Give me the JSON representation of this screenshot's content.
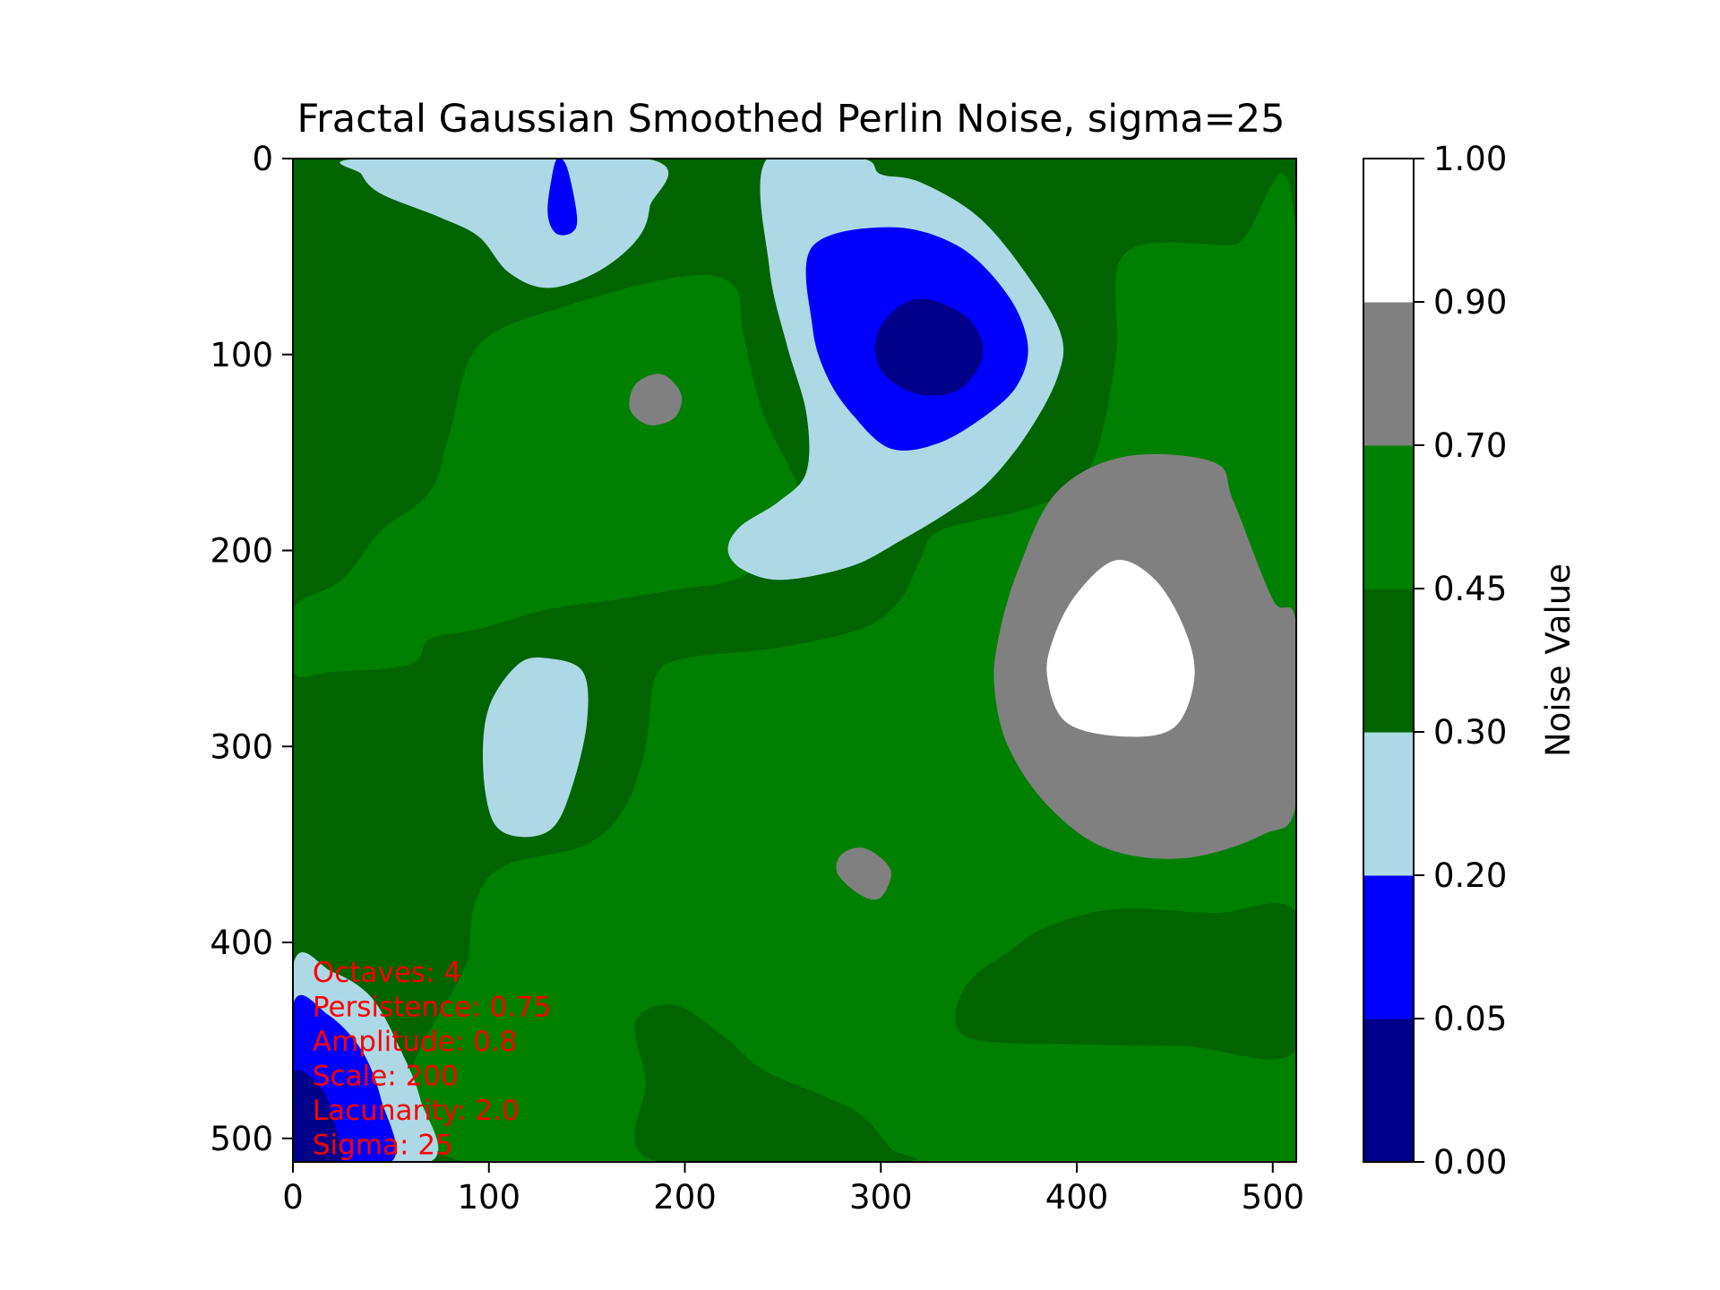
{
  "chart_data": {
    "type": "heatmap",
    "title": "Fractal Gaussian Smoothed Perlin Noise, sigma=25",
    "xlabel": "",
    "ylabel": "",
    "x_ticks": [
      0,
      100,
      200,
      300,
      400,
      500
    ],
    "y_ticks": [
      0,
      100,
      200,
      300,
      400,
      500
    ],
    "xlim": [
      0,
      512
    ],
    "ylim": [
      512,
      0
    ],
    "grid": false,
    "colorbar": {
      "label": "Noise Value",
      "boundaries": [
        0.0,
        0.05,
        0.2,
        0.3,
        0.45,
        0.7,
        0.9,
        1.0
      ],
      "tick_labels": [
        "0.00",
        "0.05",
        "0.20",
        "0.30",
        "0.45",
        "0.70",
        "0.90",
        "1.00"
      ],
      "colors": [
        "#00008b",
        "#0000ff",
        "#add8e6",
        "#006400",
        "#008000",
        "#808080",
        "#ffffff"
      ]
    },
    "annotations": [
      "Octaves: 4",
      "Persistence: 0.75",
      "Amplitude: 0.8",
      "Scale: 200",
      "Lacunarity: 2.0",
      "Sigma: 25"
    ],
    "background_color": "#006400",
    "regions": [
      {
        "level": 4,
        "points": [
          [
            0,
            230
          ],
          [
            25,
            215
          ],
          [
            45,
            190
          ],
          [
            70,
            170
          ],
          [
            80,
            140
          ],
          [
            95,
            95
          ],
          [
            140,
            75
          ],
          [
            200,
            60
          ],
          [
            225,
            65
          ],
          [
            230,
            90
          ],
          [
            240,
            130
          ],
          [
            260,
            175
          ],
          [
            250,
            200
          ],
          [
            225,
            215
          ],
          [
            195,
            220
          ],
          [
            165,
            225
          ],
          [
            130,
            230
          ],
          [
            95,
            240
          ],
          [
            70,
            245
          ],
          [
            60,
            258
          ],
          [
            20,
            262
          ],
          [
            0,
            262
          ]
        ]
      },
      {
        "level": 4,
        "points": [
          [
            512,
            42
          ],
          [
            480,
            44
          ],
          [
            425,
            48
          ],
          [
            420,
            100
          ],
          [
            410,
            150
          ],
          [
            395,
            170
          ],
          [
            370,
            180
          ],
          [
            330,
            190
          ],
          [
            320,
            205
          ],
          [
            310,
            225
          ],
          [
            290,
            240
          ],
          [
            245,
            250
          ],
          [
            200,
            255
          ],
          [
            185,
            265
          ],
          [
            180,
            300
          ],
          [
            170,
            330
          ],
          [
            150,
            350
          ],
          [
            110,
            360
          ],
          [
            95,
            375
          ],
          [
            90,
            405
          ],
          [
            88,
            512
          ],
          [
            512,
            512
          ]
        ]
      },
      {
        "level": 3,
        "points": [
          [
            185,
            512
          ],
          [
            180,
            470
          ],
          [
            175,
            440
          ],
          [
            195,
            432
          ],
          [
            220,
            448
          ],
          [
            240,
            465
          ],
          [
            270,
            478
          ],
          [
            290,
            488
          ],
          [
            305,
            505
          ],
          [
            310,
            512
          ]
        ]
      },
      {
        "level": 3,
        "points": [
          [
            512,
            385
          ],
          [
            470,
            385
          ],
          [
            420,
            383
          ],
          [
            385,
            392
          ],
          [
            365,
            405
          ],
          [
            345,
            420
          ],
          [
            338,
            440
          ],
          [
            350,
            450
          ],
          [
            400,
            452
          ],
          [
            455,
            453
          ],
          [
            512,
            455
          ]
        ]
      },
      {
        "level": 5,
        "points": [
          [
            512,
            238
          ],
          [
            500,
            225
          ],
          [
            480,
            175
          ],
          [
            470,
            155
          ],
          [
            425,
            152
          ],
          [
            390,
            170
          ],
          [
            370,
            210
          ],
          [
            360,
            245
          ],
          [
            358,
            270
          ],
          [
            365,
            300
          ],
          [
            385,
            330
          ],
          [
            415,
            352
          ],
          [
            455,
            357
          ],
          [
            495,
            345
          ],
          [
            512,
            328
          ]
        ]
      },
      {
        "level": 6,
        "points": [
          [
            420,
            205
          ],
          [
            440,
            215
          ],
          [
            455,
            240
          ],
          [
            460,
            265
          ],
          [
            450,
            290
          ],
          [
            425,
            295
          ],
          [
            395,
            288
          ],
          [
            385,
            265
          ],
          [
            388,
            245
          ],
          [
            400,
            222
          ]
        ]
      },
      {
        "level": 5,
        "points": [
          [
            175,
            115
          ],
          [
            188,
            110
          ],
          [
            198,
            120
          ],
          [
            195,
            132
          ],
          [
            182,
            136
          ],
          [
            172,
            128
          ]
        ]
      },
      {
        "level": 5,
        "points": [
          [
            280,
            355
          ],
          [
            292,
            352
          ],
          [
            305,
            363
          ],
          [
            300,
            377
          ],
          [
            290,
            376
          ],
          [
            278,
            365
          ]
        ]
      },
      {
        "level": 2,
        "points": [
          [
            35,
            0
          ],
          [
            180,
            0
          ],
          [
            182,
            25
          ],
          [
            175,
            42
          ],
          [
            155,
            58
          ],
          [
            130,
            66
          ],
          [
            110,
            58
          ],
          [
            95,
            40
          ],
          [
            75,
            30
          ],
          [
            45,
            18
          ],
          [
            35,
            8
          ]
        ]
      },
      {
        "level": 1,
        "points": [
          [
            135,
            0
          ],
          [
            140,
            5
          ],
          [
            145,
            30
          ],
          [
            142,
            38
          ],
          [
            134,
            38
          ],
          [
            130,
            28
          ],
          [
            132,
            10
          ]
        ]
      },
      {
        "level": 2,
        "points": [
          [
            242,
            0
          ],
          [
            290,
            0
          ],
          [
            300,
            8
          ],
          [
            320,
            12
          ],
          [
            350,
            30
          ],
          [
            375,
            60
          ],
          [
            392,
            90
          ],
          [
            390,
            112
          ],
          [
            375,
            140
          ],
          [
            355,
            165
          ],
          [
            335,
            180
          ],
          [
            310,
            195
          ],
          [
            285,
            208
          ],
          [
            250,
            215
          ],
          [
            230,
            210
          ],
          [
            222,
            200
          ],
          [
            228,
            188
          ],
          [
            248,
            175
          ],
          [
            262,
            160
          ],
          [
            262,
            130
          ],
          [
            252,
            95
          ],
          [
            243,
            55
          ]
        ]
      },
      {
        "level": 1,
        "points": [
          [
            265,
            45
          ],
          [
            305,
            35
          ],
          [
            340,
            45
          ],
          [
            365,
            70
          ],
          [
            375,
            95
          ],
          [
            370,
            115
          ],
          [
            355,
            130
          ],
          [
            330,
            145
          ],
          [
            305,
            148
          ],
          [
            285,
            130
          ],
          [
            272,
            110
          ],
          [
            265,
            85
          ]
        ]
      },
      {
        "level": 0,
        "points": [
          [
            325,
            72
          ],
          [
            345,
            82
          ],
          [
            352,
            100
          ],
          [
            340,
            118
          ],
          [
            318,
            120
          ],
          [
            300,
            108
          ],
          [
            298,
            90
          ],
          [
            310,
            75
          ]
        ]
      },
      {
        "level": 2,
        "points": [
          [
            115,
            258
          ],
          [
            130,
            255
          ],
          [
            148,
            262
          ],
          [
            150,
            288
          ],
          [
            142,
            322
          ],
          [
            132,
            342
          ],
          [
            115,
            346
          ],
          [
            102,
            338
          ],
          [
            97,
            310
          ],
          [
            100,
            280
          ]
        ]
      },
      {
        "level": 2,
        "points": [
          [
            0,
            412
          ],
          [
            20,
            415
          ],
          [
            40,
            428
          ],
          [
            55,
            455
          ],
          [
            65,
            480
          ],
          [
            70,
            512
          ],
          [
            0,
            512
          ]
        ]
      },
      {
        "level": 1,
        "points": [
          [
            0,
            432
          ],
          [
            18,
            437
          ],
          [
            35,
            455
          ],
          [
            45,
            480
          ],
          [
            50,
            512
          ],
          [
            0,
            512
          ]
        ]
      },
      {
        "level": 0,
        "points": [
          [
            0,
            467
          ],
          [
            15,
            475
          ],
          [
            22,
            495
          ],
          [
            24,
            512
          ],
          [
            0,
            512
          ]
        ]
      }
    ]
  }
}
